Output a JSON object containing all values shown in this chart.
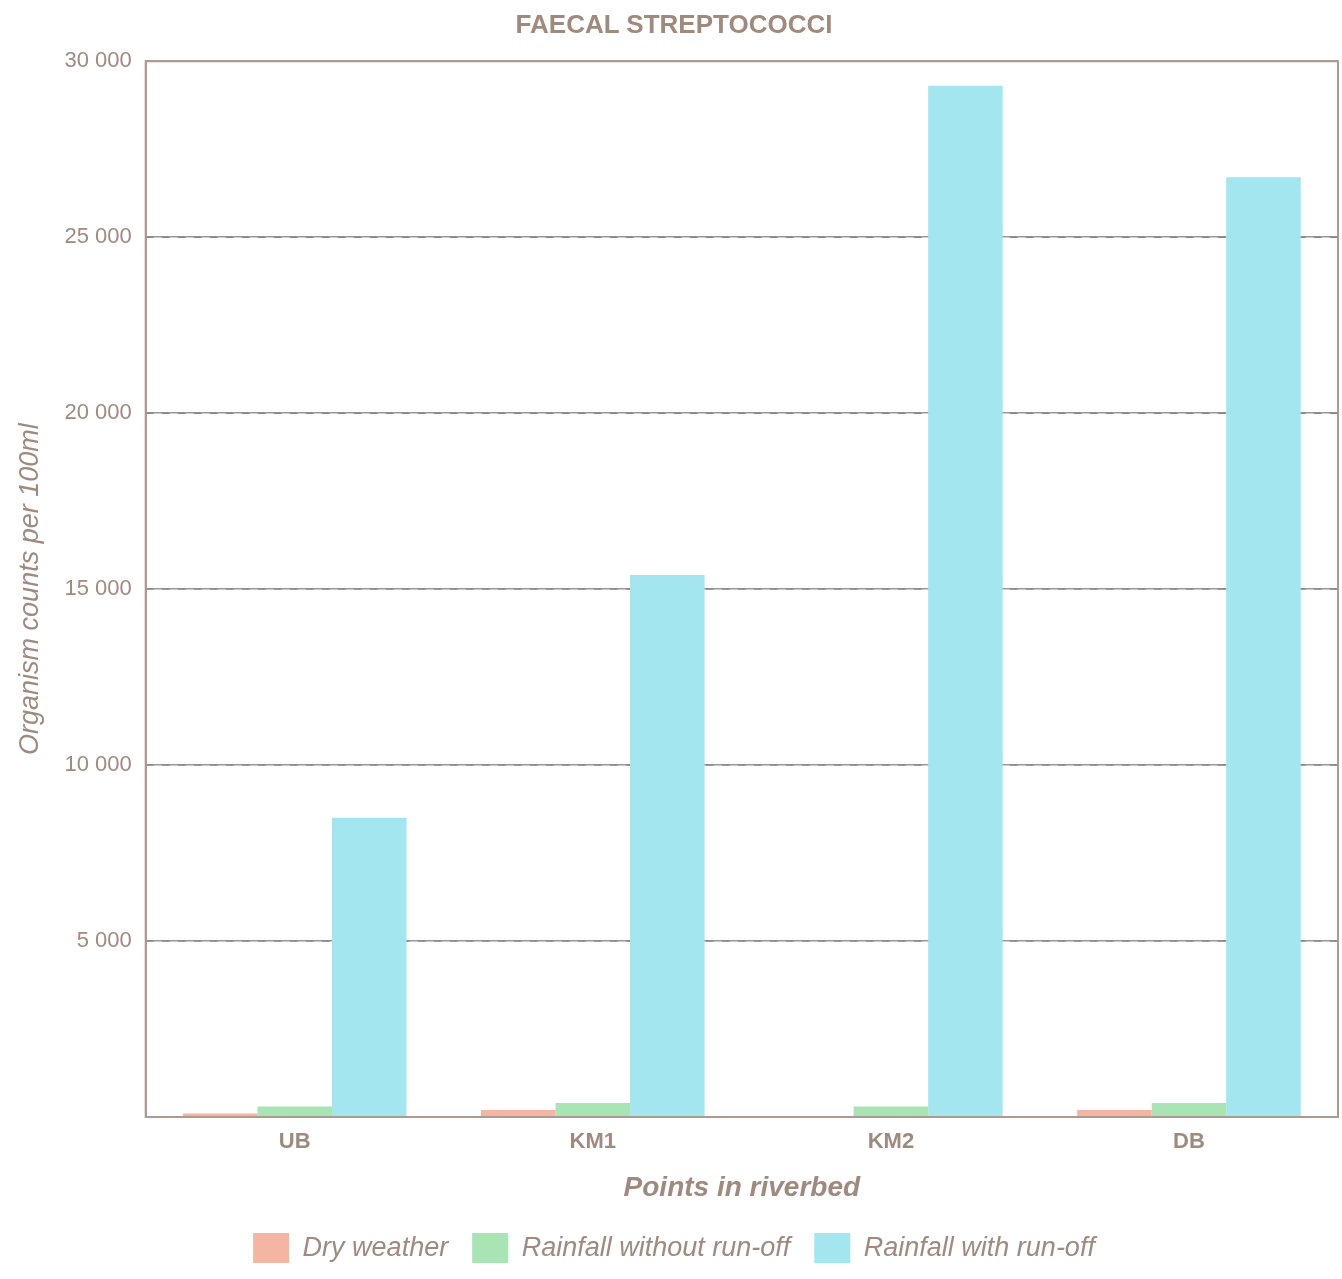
{
  "chart_data": {
    "type": "bar",
    "title": "FAECAL STREPTOCOCCI",
    "xlabel": "Points in riverbed",
    "ylabel": "Organism counts per 100ml",
    "categories": [
      "UB",
      "KM1",
      "KM2",
      "DB"
    ],
    "series": [
      {
        "name": "Dry weather",
        "color": "#f4b5a3",
        "values": [
          100,
          200,
          0,
          200
        ]
      },
      {
        "name": "Rainfall without run-off",
        "color": "#a8e4b4",
        "values": [
          300,
          400,
          300,
          400
        ]
      },
      {
        "name": "Rainfall with run-off",
        "color": "#a3e6f0",
        "values": [
          8500,
          15400,
          29300,
          26700
        ]
      }
    ],
    "ylim": [
      0,
      30000
    ],
    "yticks": [
      {
        "value": 0,
        "label": null
      },
      {
        "value": 5000,
        "label": "5 000"
      },
      {
        "value": 10000,
        "label": "10 000"
      },
      {
        "value": 15000,
        "label": "15 000"
      },
      {
        "value": 20000,
        "label": "20 000"
      },
      {
        "value": 25000,
        "label": "25 000"
      },
      {
        "value": 30000,
        "label": "30 000"
      }
    ],
    "grid": "y",
    "legend": "bottom"
  }
}
